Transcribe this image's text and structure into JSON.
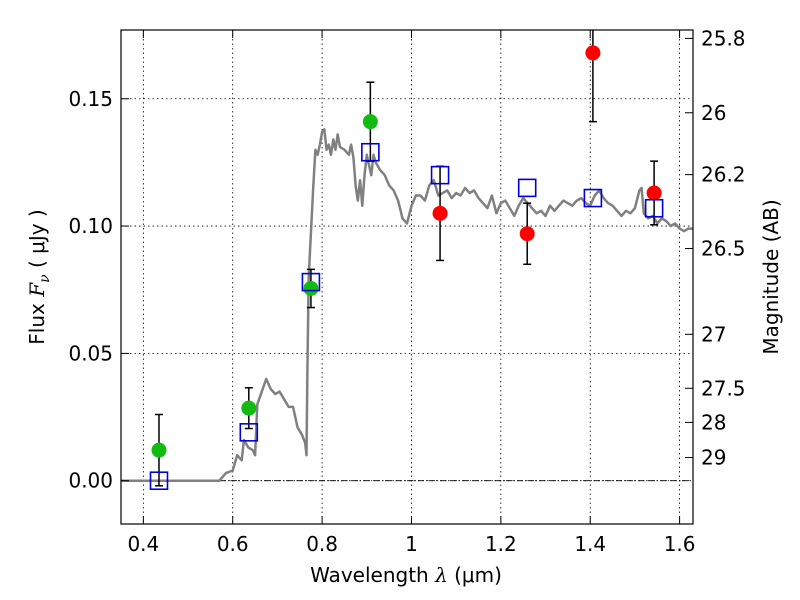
{
  "chart_data": {
    "type": "scatter",
    "xlabel": {
      "text": "Wavelength",
      "symbol": "λ",
      "unit": "(μm)"
    },
    "ylabel": {
      "text": "Flux",
      "symbol": "F",
      "subscript": "ν",
      "unit": "( μJy )"
    },
    "y2label": "Magnitude (AB)",
    "xlim": [
      0.35,
      1.63
    ],
    "ylim": [
      -0.017,
      0.177
    ],
    "x_ticks": [
      0.4,
      0.6,
      0.8,
      1.0,
      1.2,
      1.4,
      1.6
    ],
    "x_tick_labels": [
      "0.4",
      "0.6",
      "0.8",
      "1",
      "1.2",
      "1.4",
      "1.6"
    ],
    "y_ticks": [
      0.0,
      0.05,
      0.1,
      0.15
    ],
    "y_tick_labels": [
      "0.00",
      "0.05",
      "0.10",
      "0.15"
    ],
    "right_ticks": [
      {
        "label": "25.8",
        "flux": 0.1737
      },
      {
        "label": "26",
        "flux": 0.1445
      },
      {
        "label": "26.2",
        "flux": 0.1202
      },
      {
        "label": "26.5",
        "flux": 0.0912
      },
      {
        "label": "27",
        "flux": 0.0575
      },
      {
        "label": "27.5",
        "flux": 0.0363
      },
      {
        "label": "28",
        "flux": 0.0229
      },
      {
        "label": "29",
        "flux": 0.0091
      }
    ],
    "grid": true,
    "colors": {
      "green": "#11bb11",
      "red": "#ff0000",
      "square": "#0000dd",
      "model": "#808080"
    },
    "series": [
      {
        "marker": "circle",
        "color": "green",
        "points": [
          {
            "x": 0.435,
            "y": 0.012,
            "err": 0.014
          },
          {
            "x": 0.636,
            "y": 0.0285,
            "err": 0.008
          },
          {
            "x": 0.775,
            "y": 0.0755,
            "err": 0.0075
          },
          {
            "x": 0.908,
            "y": 0.141,
            "err": 0.0155
          }
        ]
      },
      {
        "marker": "circle",
        "color": "red",
        "points": [
          {
            "x": 1.064,
            "y": 0.105,
            "err": 0.0185
          },
          {
            "x": 1.259,
            "y": 0.097,
            "err": 0.012
          },
          {
            "x": 1.406,
            "y": 0.168,
            "err": 0.027
          },
          {
            "x": 1.543,
            "y": 0.113,
            "err": 0.0125
          }
        ]
      },
      {
        "marker": "open-square",
        "color": "square",
        "points": [
          {
            "x": 0.435,
            "y": 0.0
          },
          {
            "x": 0.636,
            "y": 0.019
          },
          {
            "x": 0.775,
            "y": 0.078
          },
          {
            "x": 0.908,
            "y": 0.129
          },
          {
            "x": 1.064,
            "y": 0.12
          },
          {
            "x": 1.259,
            "y": 0.115
          },
          {
            "x": 1.406,
            "y": 0.111
          },
          {
            "x": 1.543,
            "y": 0.107
          }
        ]
      },
      {
        "marker": "line",
        "color": "model",
        "points": [
          [
            0.35,
            0.0
          ],
          [
            0.57,
            0.0
          ],
          [
            0.585,
            0.003
          ],
          [
            0.6,
            0.004
          ],
          [
            0.61,
            0.01
          ],
          [
            0.62,
            0.008
          ],
          [
            0.625,
            0.016
          ],
          [
            0.635,
            0.013
          ],
          [
            0.645,
            0.012
          ],
          [
            0.65,
            0.01
          ],
          [
            0.655,
            0.03
          ],
          [
            0.665,
            0.035
          ],
          [
            0.675,
            0.04
          ],
          [
            0.685,
            0.036
          ],
          [
            0.695,
            0.034
          ],
          [
            0.705,
            0.035
          ],
          [
            0.715,
            0.032
          ],
          [
            0.725,
            0.029
          ],
          [
            0.735,
            0.029
          ],
          [
            0.745,
            0.021
          ],
          [
            0.755,
            0.018
          ],
          [
            0.762,
            0.015
          ],
          [
            0.765,
            0.01
          ],
          [
            0.767,
            0.04
          ],
          [
            0.77,
            0.08
          ],
          [
            0.775,
            0.097
          ],
          [
            0.78,
            0.115
          ],
          [
            0.785,
            0.13
          ],
          [
            0.79,
            0.128
          ],
          [
            0.795,
            0.132
          ],
          [
            0.8,
            0.137
          ],
          [
            0.805,
            0.138
          ],
          [
            0.81,
            0.13
          ],
          [
            0.815,
            0.132
          ],
          [
            0.82,
            0.128
          ],
          [
            0.825,
            0.134
          ],
          [
            0.83,
            0.13
          ],
          [
            0.835,
            0.136
          ],
          [
            0.84,
            0.131
          ],
          [
            0.85,
            0.13
          ],
          [
            0.86,
            0.128
          ],
          [
            0.865,
            0.132
          ],
          [
            0.87,
            0.127
          ],
          [
            0.875,
            0.116
          ],
          [
            0.88,
            0.11
          ],
          [
            0.885,
            0.118
          ],
          [
            0.89,
            0.108
          ],
          [
            0.895,
            0.12
          ],
          [
            0.9,
            0.128
          ],
          [
            0.905,
            0.124
          ],
          [
            0.91,
            0.12
          ],
          [
            0.915,
            0.128
          ],
          [
            0.92,
            0.125
          ],
          [
            0.93,
            0.122
          ],
          [
            0.94,
            0.12
          ],
          [
            0.95,
            0.116
          ],
          [
            0.96,
            0.114
          ],
          [
            0.97,
            0.11
          ],
          [
            0.98,
            0.103
          ],
          [
            0.99,
            0.101
          ],
          [
            1.0,
            0.108
          ],
          [
            1.01,
            0.112
          ],
          [
            1.02,
            0.112
          ],
          [
            1.03,
            0.11
          ],
          [
            1.04,
            0.116
          ],
          [
            1.05,
            0.118
          ],
          [
            1.06,
            0.112
          ],
          [
            1.07,
            0.113
          ],
          [
            1.08,
            0.114
          ],
          [
            1.09,
            0.111
          ],
          [
            1.1,
            0.113
          ],
          [
            1.11,
            0.112
          ],
          [
            1.12,
            0.115
          ],
          [
            1.13,
            0.113
          ],
          [
            1.14,
            0.114
          ],
          [
            1.15,
            0.111
          ],
          [
            1.16,
            0.109
          ],
          [
            1.17,
            0.107
          ],
          [
            1.18,
            0.112
          ],
          [
            1.19,
            0.105
          ],
          [
            1.2,
            0.109
          ],
          [
            1.21,
            0.11
          ],
          [
            1.22,
            0.107
          ],
          [
            1.23,
            0.104
          ],
          [
            1.24,
            0.108
          ],
          [
            1.25,
            0.111
          ],
          [
            1.26,
            0.109
          ],
          [
            1.27,
            0.107
          ],
          [
            1.28,
            0.105
          ],
          [
            1.29,
            0.106
          ],
          [
            1.3,
            0.104
          ],
          [
            1.31,
            0.108
          ],
          [
            1.32,
            0.106
          ],
          [
            1.33,
            0.108
          ],
          [
            1.34,
            0.11
          ],
          [
            1.35,
            0.109
          ],
          [
            1.36,
            0.108
          ],
          [
            1.37,
            0.11
          ],
          [
            1.38,
            0.111
          ],
          [
            1.39,
            0.109
          ],
          [
            1.4,
            0.108
          ],
          [
            1.41,
            0.112
          ],
          [
            1.42,
            0.114
          ],
          [
            1.43,
            0.111
          ],
          [
            1.44,
            0.109
          ],
          [
            1.45,
            0.108
          ],
          [
            1.46,
            0.106
          ],
          [
            1.47,
            0.104
          ],
          [
            1.48,
            0.106
          ],
          [
            1.49,
            0.105
          ],
          [
            1.5,
            0.107
          ],
          [
            1.51,
            0.114
          ],
          [
            1.515,
            0.115
          ],
          [
            1.52,
            0.105
          ],
          [
            1.53,
            0.103
          ],
          [
            1.54,
            0.104
          ],
          [
            1.55,
            0.101
          ],
          [
            1.56,
            0.103
          ],
          [
            1.57,
            0.102
          ],
          [
            1.58,
            0.1
          ],
          [
            1.59,
            0.101
          ],
          [
            1.6,
            0.099
          ],
          [
            1.61,
            0.098
          ],
          [
            1.62,
            0.099
          ],
          [
            1.63,
            0.099
          ]
        ]
      }
    ]
  }
}
